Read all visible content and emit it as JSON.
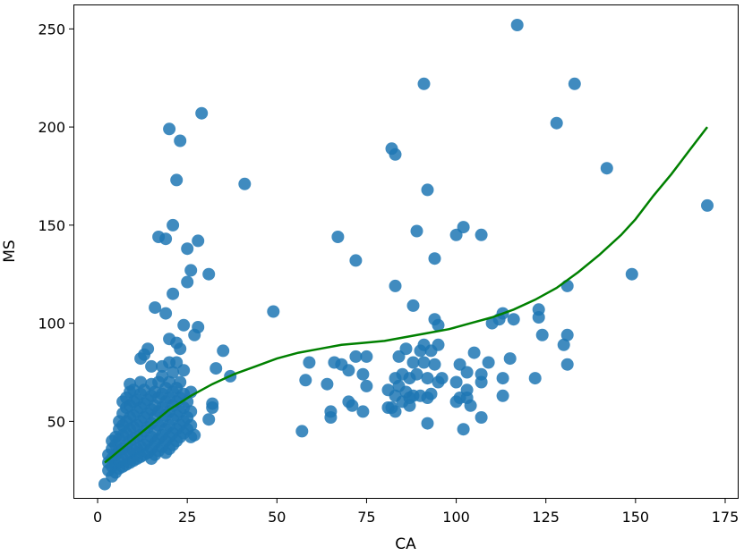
{
  "chart_data": {
    "type": "scatter",
    "title": "",
    "xlabel": "CA",
    "ylabel": "MS",
    "xlim": [
      -6.5,
      178.5
    ],
    "ylim": [
      11,
      262
    ],
    "xticks": [
      0,
      25,
      50,
      75,
      100,
      125,
      150,
      175
    ],
    "yticks": [
      50,
      100,
      150,
      200,
      250
    ],
    "grid": false,
    "colors": {
      "points": "#1f77b4",
      "fit_line": "#008000"
    },
    "points": [
      [
        2,
        18
      ],
      [
        3,
        25
      ],
      [
        3,
        29
      ],
      [
        3,
        33
      ],
      [
        4,
        22
      ],
      [
        4,
        27
      ],
      [
        4,
        31
      ],
      [
        4,
        36
      ],
      [
        4,
        40
      ],
      [
        5,
        24
      ],
      [
        5,
        28
      ],
      [
        5,
        33
      ],
      [
        5,
        38
      ],
      [
        5,
        42
      ],
      [
        6,
        26
      ],
      [
        6,
        30
      ],
      [
        6,
        35
      ],
      [
        6,
        41
      ],
      [
        6,
        46
      ],
      [
        6,
        50
      ],
      [
        7,
        27
      ],
      [
        7,
        31
      ],
      [
        7,
        36
      ],
      [
        7,
        43
      ],
      [
        7,
        48
      ],
      [
        7,
        54
      ],
      [
        7,
        60
      ],
      [
        8,
        28
      ],
      [
        8,
        33
      ],
      [
        8,
        38
      ],
      [
        8,
        44
      ],
      [
        8,
        50
      ],
      [
        8,
        57
      ],
      [
        8,
        62
      ],
      [
        9,
        29
      ],
      [
        9,
        34
      ],
      [
        9,
        40
      ],
      [
        9,
        46
      ],
      [
        9,
        52
      ],
      [
        9,
        58
      ],
      [
        9,
        65
      ],
      [
        9,
        69
      ],
      [
        10,
        30
      ],
      [
        10,
        35
      ],
      [
        10,
        41
      ],
      [
        10,
        47
      ],
      [
        10,
        53
      ],
      [
        10,
        60
      ],
      [
        10,
        66
      ],
      [
        11,
        31
      ],
      [
        11,
        36
      ],
      [
        11,
        42
      ],
      [
        11,
        48
      ],
      [
        11,
        55
      ],
      [
        11,
        61
      ],
      [
        12,
        32
      ],
      [
        12,
        37
      ],
      [
        12,
        43
      ],
      [
        12,
        50
      ],
      [
        12,
        57
      ],
      [
        12,
        64
      ],
      [
        12,
        70
      ],
      [
        12,
        82
      ],
      [
        13,
        33
      ],
      [
        13,
        38
      ],
      [
        13,
        45
      ],
      [
        13,
        52
      ],
      [
        13,
        59
      ],
      [
        13,
        66
      ],
      [
        13,
        84
      ],
      [
        14,
        34
      ],
      [
        14,
        40
      ],
      [
        14,
        47
      ],
      [
        14,
        54
      ],
      [
        14,
        61
      ],
      [
        14,
        87
      ],
      [
        15,
        31
      ],
      [
        15,
        36
      ],
      [
        15,
        42
      ],
      [
        15,
        49
      ],
      [
        15,
        56
      ],
      [
        15,
        63
      ],
      [
        15,
        69
      ],
      [
        15,
        78
      ],
      [
        16,
        33
      ],
      [
        16,
        39
      ],
      [
        16,
        45
      ],
      [
        16,
        52
      ],
      [
        16,
        58
      ],
      [
        16,
        65
      ],
      [
        16,
        108
      ],
      [
        17,
        35
      ],
      [
        17,
        41
      ],
      [
        17,
        48
      ],
      [
        17,
        55
      ],
      [
        17,
        62
      ],
      [
        17,
        70
      ],
      [
        17,
        144
      ],
      [
        18,
        37
      ],
      [
        18,
        43
      ],
      [
        18,
        50
      ],
      [
        18,
        57
      ],
      [
        18,
        64
      ],
      [
        18,
        73
      ],
      [
        18,
        78
      ],
      [
        19,
        34
      ],
      [
        19,
        40
      ],
      [
        19,
        46
      ],
      [
        19,
        53
      ],
      [
        19,
        60
      ],
      [
        19,
        67
      ],
      [
        19,
        105
      ],
      [
        19,
        143
      ],
      [
        20,
        36
      ],
      [
        20,
        42
      ],
      [
        20,
        48
      ],
      [
        20,
        55
      ],
      [
        20,
        62
      ],
      [
        20,
        70
      ],
      [
        20,
        80
      ],
      [
        20,
        92
      ],
      [
        20,
        199
      ],
      [
        21,
        38
      ],
      [
        21,
        44
      ],
      [
        21,
        51
      ],
      [
        21,
        58
      ],
      [
        21,
        65
      ],
      [
        21,
        75
      ],
      [
        21,
        115
      ],
      [
        21,
        150
      ],
      [
        22,
        40
      ],
      [
        22,
        46
      ],
      [
        22,
        53
      ],
      [
        22,
        60
      ],
      [
        22,
        67
      ],
      [
        22,
        80
      ],
      [
        22,
        90
      ],
      [
        22,
        173
      ],
      [
        23,
        42
      ],
      [
        23,
        48
      ],
      [
        23,
        55
      ],
      [
        23,
        62
      ],
      [
        23,
        70
      ],
      [
        23,
        87
      ],
      [
        23,
        193
      ],
      [
        24,
        44
      ],
      [
        24,
        50
      ],
      [
        24,
        57
      ],
      [
        24,
        64
      ],
      [
        24,
        76
      ],
      [
        24,
        99
      ],
      [
        25,
        46
      ],
      [
        25,
        52
      ],
      [
        25,
        60
      ],
      [
        25,
        121
      ],
      [
        25,
        138
      ],
      [
        26,
        42
      ],
      [
        26,
        48
      ],
      [
        26,
        55
      ],
      [
        26,
        65
      ],
      [
        26,
        127
      ],
      [
        27,
        43
      ],
      [
        27,
        94
      ],
      [
        28,
        98
      ],
      [
        28,
        142
      ],
      [
        29,
        207
      ],
      [
        31,
        51
      ],
      [
        31,
        125
      ],
      [
        32,
        57
      ],
      [
        32,
        59
      ],
      [
        33,
        77
      ],
      [
        35,
        86
      ],
      [
        37,
        73
      ],
      [
        41,
        171
      ],
      [
        49,
        106
      ],
      [
        57,
        45
      ],
      [
        58,
        71
      ],
      [
        59,
        80
      ],
      [
        64,
        69
      ],
      [
        65,
        52
      ],
      [
        65,
        55
      ],
      [
        66,
        80
      ],
      [
        67,
        144
      ],
      [
        68,
        79
      ],
      [
        70,
        76
      ],
      [
        70,
        60
      ],
      [
        71,
        58
      ],
      [
        72,
        132
      ],
      [
        72,
        83
      ],
      [
        74,
        74
      ],
      [
        74,
        55
      ],
      [
        75,
        68
      ],
      [
        75,
        83
      ],
      [
        81,
        57
      ],
      [
        81,
        66
      ],
      [
        82,
        189
      ],
      [
        82,
        57
      ],
      [
        83,
        186
      ],
      [
        83,
        119
      ],
      [
        83,
        72
      ],
      [
        83,
        55
      ],
      [
        83,
        63
      ],
      [
        84,
        83
      ],
      [
        84,
        68
      ],
      [
        85,
        60
      ],
      [
        85,
        74
      ],
      [
        86,
        65
      ],
      [
        86,
        87
      ],
      [
        87,
        58
      ],
      [
        87,
        72
      ],
      [
        87,
        62
      ],
      [
        88,
        109
      ],
      [
        88,
        80
      ],
      [
        88,
        63
      ],
      [
        89,
        147
      ],
      [
        89,
        74
      ],
      [
        90,
        86
      ],
      [
        90,
        63
      ],
      [
        91,
        222
      ],
      [
        91,
        80
      ],
      [
        91,
        89
      ],
      [
        92,
        168
      ],
      [
        92,
        49
      ],
      [
        92,
        72
      ],
      [
        92,
        62
      ],
      [
        93,
        86
      ],
      [
        93,
        64
      ],
      [
        94,
        133
      ],
      [
        94,
        102
      ],
      [
        94,
        79
      ],
      [
        95,
        99
      ],
      [
        95,
        89
      ],
      [
        95,
        70
      ],
      [
        96,
        72
      ],
      [
        100,
        145
      ],
      [
        100,
        70
      ],
      [
        100,
        60
      ],
      [
        101,
        79
      ],
      [
        101,
        62
      ],
      [
        102,
        149
      ],
      [
        102,
        46
      ],
      [
        103,
        66
      ],
      [
        103,
        75
      ],
      [
        103,
        62
      ],
      [
        104,
        58
      ],
      [
        105,
        85
      ],
      [
        107,
        145
      ],
      [
        107,
        74
      ],
      [
        107,
        70
      ],
      [
        107,
        52
      ],
      [
        109,
        80
      ],
      [
        110,
        100
      ],
      [
        112,
        102
      ],
      [
        113,
        105
      ],
      [
        113,
        72
      ],
      [
        113,
        63
      ],
      [
        115,
        82
      ],
      [
        116,
        102
      ],
      [
        117,
        252
      ],
      [
        122,
        72
      ],
      [
        123,
        107
      ],
      [
        123,
        103
      ],
      [
        124,
        94
      ],
      [
        128,
        202
      ],
      [
        130,
        89
      ],
      [
        131,
        119
      ],
      [
        131,
        79
      ],
      [
        131,
        94
      ],
      [
        133,
        222
      ],
      [
        142,
        179
      ],
      [
        149,
        125
      ],
      [
        170,
        160
      ]
    ],
    "fit_line": [
      [
        2,
        29
      ],
      [
        8,
        38
      ],
      [
        14,
        47
      ],
      [
        20,
        56
      ],
      [
        26,
        63
      ],
      [
        32,
        69
      ],
      [
        38,
        74
      ],
      [
        44,
        78
      ],
      [
        50,
        82
      ],
      [
        56,
        85
      ],
      [
        62,
        87
      ],
      [
        68,
        89
      ],
      [
        74,
        90
      ],
      [
        80,
        91
      ],
      [
        86,
        93
      ],
      [
        92,
        95
      ],
      [
        98,
        97
      ],
      [
        104,
        100
      ],
      [
        110,
        103
      ],
      [
        116,
        107
      ],
      [
        122,
        112
      ],
      [
        128,
        118
      ],
      [
        134,
        126
      ],
      [
        140,
        135
      ],
      [
        146,
        145
      ],
      [
        150,
        153
      ],
      [
        155,
        165
      ],
      [
        160,
        176
      ],
      [
        165,
        188
      ],
      [
        170,
        200
      ]
    ]
  }
}
